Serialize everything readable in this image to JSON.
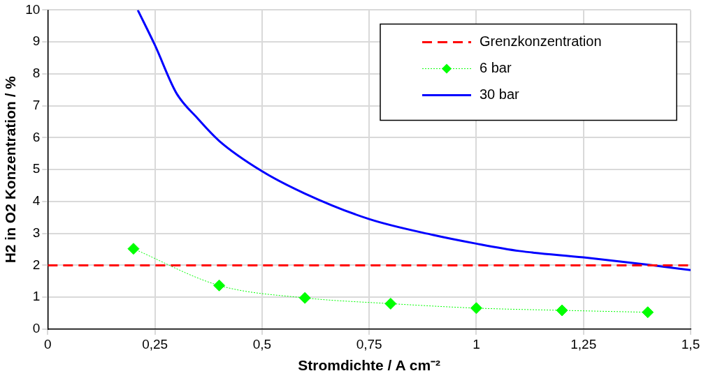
{
  "chart_data": {
    "type": "line",
    "xlabel": "Stromdichte / A cm⁻²",
    "ylabel": "H2 in O2 Konzentration / %",
    "series": [
      {
        "name": "Grenzkonzentration",
        "color": "#ff0000",
        "line_style": "dashed",
        "marker": "none",
        "x": [
          0,
          1.5
        ],
        "values": [
          2,
          2
        ]
      },
      {
        "name": "6 bar",
        "color": "#00ff00",
        "line_style": "dotted",
        "marker": "diamond",
        "x": [
          0.2,
          0.4,
          0.6,
          0.8,
          1.0,
          1.2,
          1.4
        ],
        "values": [
          2.52,
          1.37,
          0.98,
          0.8,
          0.66,
          0.59,
          0.53
        ]
      },
      {
        "name": "30 bar",
        "color": "#0000ff",
        "line_style": "solid",
        "marker": "none",
        "x": [
          0.21,
          0.25,
          0.3,
          0.35,
          0.4,
          0.5,
          0.6,
          0.75,
          0.9,
          1.0,
          1.1,
          1.25,
          1.4,
          1.5
        ],
        "values": [
          10,
          8.9,
          7.4,
          6.6,
          5.9,
          4.95,
          4.25,
          3.45,
          2.95,
          2.68,
          2.45,
          2.25,
          2.02,
          1.85
        ]
      }
    ],
    "xlim": [
      0,
      1.5
    ],
    "xticks": [
      0,
      {
        "value": 0.25,
        "label": "0,25"
      },
      {
        "value": 0.5,
        "label": "0,5"
      },
      {
        "value": 0.75,
        "label": "0,75"
      },
      1,
      {
        "value": 1.25,
        "label": "1,25"
      },
      {
        "value": 1.5,
        "label": "1,5"
      }
    ],
    "ylim": [
      0,
      10
    ],
    "yticks": [
      0,
      1,
      2,
      3,
      4,
      5,
      6,
      7,
      8,
      9,
      10
    ],
    "grid": true,
    "legend": "top right"
  }
}
